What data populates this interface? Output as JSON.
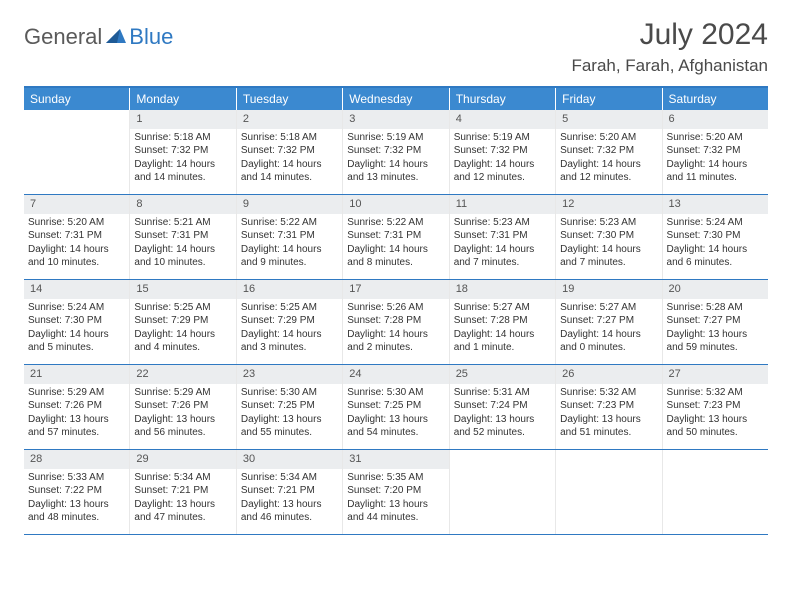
{
  "brand": {
    "name1": "General",
    "name2": "Blue"
  },
  "title": "July 2024",
  "location": "Farah, Farah, Afghanistan",
  "colors": {
    "header_bg": "#3b89d0",
    "border": "#2f79c2",
    "daynum_bg": "#ebedef",
    "text": "#333333",
    "logo_gray": "#5a5a5a"
  },
  "weekdays": [
    "Sunday",
    "Monday",
    "Tuesday",
    "Wednesday",
    "Thursday",
    "Friday",
    "Saturday"
  ],
  "weeks": [
    [
      {
        "n": "",
        "sr": "",
        "ss": "",
        "dl": ""
      },
      {
        "n": "1",
        "sr": "5:18 AM",
        "ss": "7:32 PM",
        "dl": "14 hours and 14 minutes."
      },
      {
        "n": "2",
        "sr": "5:18 AM",
        "ss": "7:32 PM",
        "dl": "14 hours and 14 minutes."
      },
      {
        "n": "3",
        "sr": "5:19 AM",
        "ss": "7:32 PM",
        "dl": "14 hours and 13 minutes."
      },
      {
        "n": "4",
        "sr": "5:19 AM",
        "ss": "7:32 PM",
        "dl": "14 hours and 12 minutes."
      },
      {
        "n": "5",
        "sr": "5:20 AM",
        "ss": "7:32 PM",
        "dl": "14 hours and 12 minutes."
      },
      {
        "n": "6",
        "sr": "5:20 AM",
        "ss": "7:32 PM",
        "dl": "14 hours and 11 minutes."
      }
    ],
    [
      {
        "n": "7",
        "sr": "5:20 AM",
        "ss": "7:31 PM",
        "dl": "14 hours and 10 minutes."
      },
      {
        "n": "8",
        "sr": "5:21 AM",
        "ss": "7:31 PM",
        "dl": "14 hours and 10 minutes."
      },
      {
        "n": "9",
        "sr": "5:22 AM",
        "ss": "7:31 PM",
        "dl": "14 hours and 9 minutes."
      },
      {
        "n": "10",
        "sr": "5:22 AM",
        "ss": "7:31 PM",
        "dl": "14 hours and 8 minutes."
      },
      {
        "n": "11",
        "sr": "5:23 AM",
        "ss": "7:31 PM",
        "dl": "14 hours and 7 minutes."
      },
      {
        "n": "12",
        "sr": "5:23 AM",
        "ss": "7:30 PM",
        "dl": "14 hours and 7 minutes."
      },
      {
        "n": "13",
        "sr": "5:24 AM",
        "ss": "7:30 PM",
        "dl": "14 hours and 6 minutes."
      }
    ],
    [
      {
        "n": "14",
        "sr": "5:24 AM",
        "ss": "7:30 PM",
        "dl": "14 hours and 5 minutes."
      },
      {
        "n": "15",
        "sr": "5:25 AM",
        "ss": "7:29 PM",
        "dl": "14 hours and 4 minutes."
      },
      {
        "n": "16",
        "sr": "5:25 AM",
        "ss": "7:29 PM",
        "dl": "14 hours and 3 minutes."
      },
      {
        "n": "17",
        "sr": "5:26 AM",
        "ss": "7:28 PM",
        "dl": "14 hours and 2 minutes."
      },
      {
        "n": "18",
        "sr": "5:27 AM",
        "ss": "7:28 PM",
        "dl": "14 hours and 1 minute."
      },
      {
        "n": "19",
        "sr": "5:27 AM",
        "ss": "7:27 PM",
        "dl": "14 hours and 0 minutes."
      },
      {
        "n": "20",
        "sr": "5:28 AM",
        "ss": "7:27 PM",
        "dl": "13 hours and 59 minutes."
      }
    ],
    [
      {
        "n": "21",
        "sr": "5:29 AM",
        "ss": "7:26 PM",
        "dl": "13 hours and 57 minutes."
      },
      {
        "n": "22",
        "sr": "5:29 AM",
        "ss": "7:26 PM",
        "dl": "13 hours and 56 minutes."
      },
      {
        "n": "23",
        "sr": "5:30 AM",
        "ss": "7:25 PM",
        "dl": "13 hours and 55 minutes."
      },
      {
        "n": "24",
        "sr": "5:30 AM",
        "ss": "7:25 PM",
        "dl": "13 hours and 54 minutes."
      },
      {
        "n": "25",
        "sr": "5:31 AM",
        "ss": "7:24 PM",
        "dl": "13 hours and 52 minutes."
      },
      {
        "n": "26",
        "sr": "5:32 AM",
        "ss": "7:23 PM",
        "dl": "13 hours and 51 minutes."
      },
      {
        "n": "27",
        "sr": "5:32 AM",
        "ss": "7:23 PM",
        "dl": "13 hours and 50 minutes."
      }
    ],
    [
      {
        "n": "28",
        "sr": "5:33 AM",
        "ss": "7:22 PM",
        "dl": "13 hours and 48 minutes."
      },
      {
        "n": "29",
        "sr": "5:34 AM",
        "ss": "7:21 PM",
        "dl": "13 hours and 47 minutes."
      },
      {
        "n": "30",
        "sr": "5:34 AM",
        "ss": "7:21 PM",
        "dl": "13 hours and 46 minutes."
      },
      {
        "n": "31",
        "sr": "5:35 AM",
        "ss": "7:20 PM",
        "dl": "13 hours and 44 minutes."
      },
      {
        "n": "",
        "sr": "",
        "ss": "",
        "dl": ""
      },
      {
        "n": "",
        "sr": "",
        "ss": "",
        "dl": ""
      },
      {
        "n": "",
        "sr": "",
        "ss": "",
        "dl": ""
      }
    ]
  ],
  "labels": {
    "sunrise": "Sunrise:",
    "sunset": "Sunset:",
    "daylight": "Daylight:"
  }
}
